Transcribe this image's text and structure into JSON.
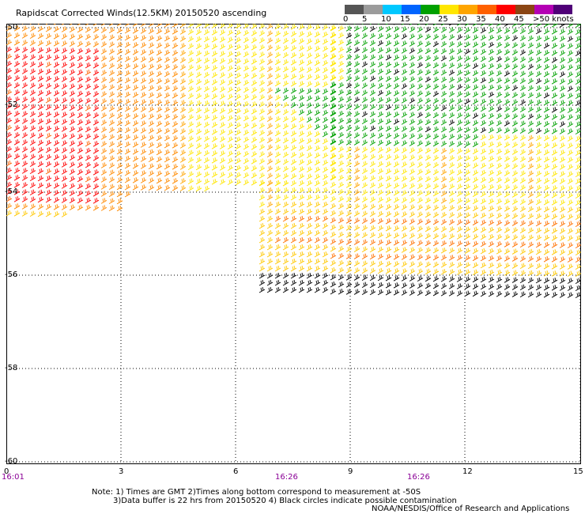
{
  "title": "Rapidscat Corrected Winds(12.5KM) 20150520 ascending",
  "legend": {
    "labels": [
      "0",
      "5",
      "10",
      "15",
      "20",
      "25",
      "30",
      "35",
      "40",
      "45",
      ">50 knots"
    ],
    "colors": [
      "#555555",
      "#9b9b9b",
      "#00c8ff",
      "#0064ff",
      "#00a000",
      "#ffe600",
      "#ffa500",
      "#ff6000",
      "#ff0000",
      "#8b4513",
      "#b400b4",
      "#500078"
    ]
  },
  "axes": {
    "lat_labels": [
      "-50",
      "-52",
      "-54",
      "-56",
      "-58",
      "-60"
    ],
    "lon_labels": [
      "0",
      "3",
      "6",
      "9",
      "12",
      "15"
    ],
    "time_labels": [
      "16:01",
      "16:26",
      "16:26"
    ]
  },
  "notes": {
    "line1": "Note: 1) Times are GMT 2)Times along bottom correspond to measurement at -50S",
    "line2": "3)Data buffer is 22 hrs from 20150520 4) Black circles indicate possible contamination",
    "line3": "NOAA/NESDIS/Office of Research and Applications"
  }
}
